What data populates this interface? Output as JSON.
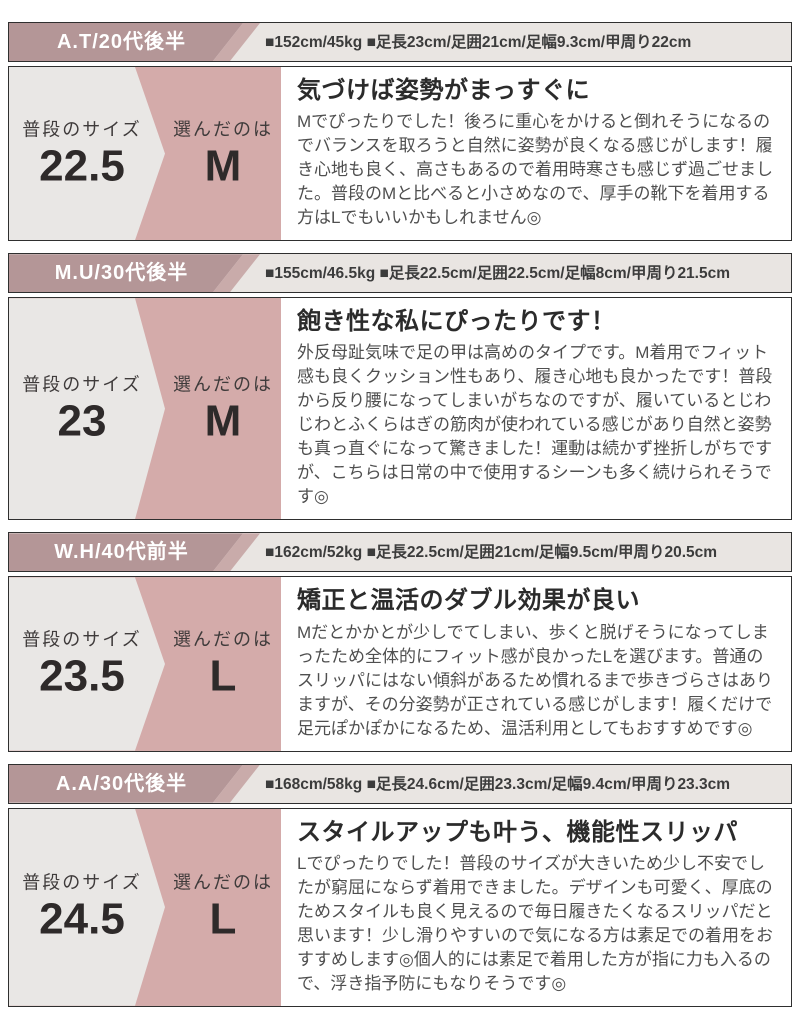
{
  "colors": {
    "header_label_bg": "#b49697",
    "header_band": "#c9abaa",
    "header_bg": "#e9e5e2",
    "panel_pink": "#d4abaa",
    "panel_gray": "#e9e7e5",
    "border": "#2f2f2f",
    "reviewer_text": "#ffffff",
    "stats_text": "#3c3c3c",
    "title_text": "#2b2b2b",
    "body_text": "#4f4f4f"
  },
  "labels": {
    "usual_size": "普段のサイズ",
    "chosen": "選んだのは"
  },
  "reviews": [
    {
      "reviewer": "A.T/20代後半",
      "stats": "■152cm/45kg ■足長23cm/足囲21cm/足幅9.3cm/甲周り22cm",
      "usual_size": "22.5",
      "chosen_size": "M",
      "title": "気づけば姿勢がまっすぐに",
      "body": "Mでぴったりでした！後ろに重心をかけると倒れそうになるのでバランスを取ろうと自然に姿勢が良くなる感じがします！履き心地も良く、高さもあるので着用時寒さも感じず過ごせました。普段のMと比べると小さめなので、厚手の靴下を着用する方はLでもいいかもしれません◎"
    },
    {
      "reviewer": "M.U/30代後半",
      "stats": "■155cm/46.5kg ■足長22.5cm/足囲22.5cm/足幅8cm/甲周り21.5cm",
      "usual_size": "23",
      "chosen_size": "M",
      "title": "飽き性な私にぴったりです！",
      "body": "外反母趾気味で足の甲は高めのタイプです。M着用でフィット感も良くクッション性もあり、履き心地も良かったです！普段から反り腰になってしまいがちなのですが、履いているとじわじわとふくらはぎの筋肉が使われている感じがあり自然と姿勢も真っ直ぐになって驚きました！運動は続かず挫折しがちですが、こちらは日常の中で使用するシーンも多く続けられそうです◎"
    },
    {
      "reviewer": "W.H/40代前半",
      "stats": "■162cm/52kg ■足長22.5cm/足囲21cm/足幅9.5cm/甲周り20.5cm",
      "usual_size": "23.5",
      "chosen_size": "L",
      "title": "矯正と温活のダブル効果が良い",
      "body": "Mだとかかとが少しでてしまい、歩くと脱げそうになってしまったため全体的にフィット感が良かったLを選びます。普通のスリッパにはない傾斜があるため慣れるまで歩きづらさはありますが、その分姿勢が正されている感じがします！履くだけで足元ぽかぽかになるため、温活利用としてもおすすめです◎"
    },
    {
      "reviewer": "A.A/30代後半",
      "stats": "■168cm/58kg ■足長24.6cm/足囲23.3cm/足幅9.4cm/甲周り23.3cm",
      "usual_size": "24.5",
      "chosen_size": "L",
      "title": "スタイルアップも叶う、機能性スリッパ",
      "body": "Lでぴったりでした！普段のサイズが大きいため少し不安でしたが窮屈にならず着用できました。デザインも可愛く、厚底のためスタイルも良く見えるので毎日履きたくなるスリッパだと思います！少し滑りやすいので気になる方は素足での着用をおすすめします◎個人的には素足で着用した方が指に力も入るので、浮き指予防にもなりそうです◎"
    }
  ]
}
